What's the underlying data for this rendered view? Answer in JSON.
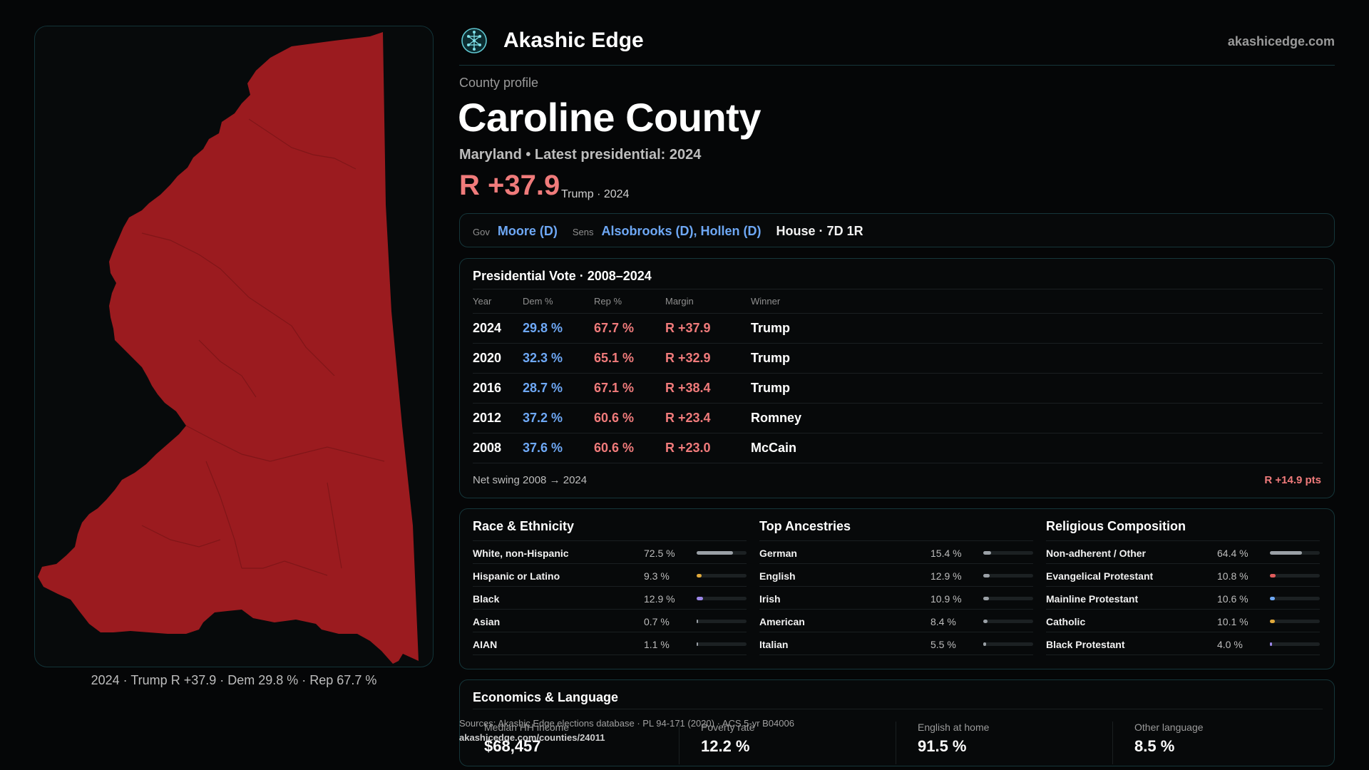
{
  "header": {
    "brand": "Akashic Edge",
    "site": "akashicedge.com",
    "logo_icon": "tree-of-life-icon"
  },
  "profile": {
    "eyebrow": "County profile",
    "title": "Caroline County",
    "subtitle": "Maryland • Latest presidential: 2024",
    "margin": "R +37.9",
    "margin_sub": "Trump · 2024"
  },
  "officials": {
    "gov_label": "Gov",
    "gov": "Moore (D)",
    "sens_label": "Sens",
    "sens": "Alsobrooks (D), Hollen (D)",
    "house": "House · 7D 1R"
  },
  "presidential": {
    "title": "Presidential Vote · 2008–2024",
    "columns": [
      "Year",
      "Dem %",
      "Rep %",
      "Margin",
      "Winner"
    ],
    "rows": [
      {
        "year": "2024",
        "dem": "29.8 %",
        "rep": "67.7 %",
        "margin": "R +37.9",
        "winner": "Trump"
      },
      {
        "year": "2020",
        "dem": "32.3 %",
        "rep": "65.1 %",
        "margin": "R +32.9",
        "winner": "Trump"
      },
      {
        "year": "2016",
        "dem": "28.7 %",
        "rep": "67.1 %",
        "margin": "R +38.4",
        "winner": "Trump"
      },
      {
        "year": "2012",
        "dem": "37.2 %",
        "rep": "60.6 %",
        "margin": "R +23.4",
        "winner": "Romney"
      },
      {
        "year": "2008",
        "dem": "37.6 %",
        "rep": "60.6 %",
        "margin": "R +23.0",
        "winner": "McCain"
      }
    ],
    "swing_label": "Net swing 2008 → 2024",
    "swing_value": "R +14.9 pts"
  },
  "race": {
    "title": "Race & Ethnicity",
    "items": [
      {
        "label": "White, non-Hispanic",
        "pct": "72.5 %",
        "value": 72.5,
        "color": "#9aa0a6"
      },
      {
        "label": "Hispanic or Latino",
        "pct": "9.3 %",
        "value": 9.3,
        "color": "#e0a93b"
      },
      {
        "label": "Black",
        "pct": "12.9 %",
        "value": 12.9,
        "color": "#9b86e8"
      },
      {
        "label": "Asian",
        "pct": "0.7 %",
        "value": 0.7,
        "color": "#9aa0a6"
      },
      {
        "label": "AIAN",
        "pct": "1.1 %",
        "value": 1.1,
        "color": "#9aa0a6"
      }
    ]
  },
  "ancestry": {
    "title": "Top Ancestries",
    "items": [
      {
        "label": "German",
        "pct": "15.4 %",
        "value": 15.4,
        "color": "#9aa0a6"
      },
      {
        "label": "English",
        "pct": "12.9 %",
        "value": 12.9,
        "color": "#9aa0a6"
      },
      {
        "label": "Irish",
        "pct": "10.9 %",
        "value": 10.9,
        "color": "#9aa0a6"
      },
      {
        "label": "American",
        "pct": "8.4 %",
        "value": 8.4,
        "color": "#9aa0a6"
      },
      {
        "label": "Italian",
        "pct": "5.5 %",
        "value": 5.5,
        "color": "#9aa0a6"
      }
    ]
  },
  "religion": {
    "title": "Religious Composition",
    "items": [
      {
        "label": "Non-adherent / Other",
        "pct": "64.4 %",
        "value": 64.4,
        "color": "#9aa0a6"
      },
      {
        "label": "Evangelical Protestant",
        "pct": "10.8 %",
        "value": 10.8,
        "color": "#e05c5c"
      },
      {
        "label": "Mainline Protestant",
        "pct": "10.6 %",
        "value": 10.6,
        "color": "#6ea8f5"
      },
      {
        "label": "Catholic",
        "pct": "10.1 %",
        "value": 10.1,
        "color": "#e0a93b"
      },
      {
        "label": "Black Protestant",
        "pct": "4.0 %",
        "value": 4.0,
        "color": "#9b86e8"
      }
    ]
  },
  "economics": {
    "title": "Economics & Language",
    "items": [
      {
        "label": "Median HH income",
        "value": "$68,457"
      },
      {
        "label": "Poverty rate",
        "value": "12.2 %"
      },
      {
        "label": "English at home",
        "value": "91.5 %"
      },
      {
        "label": "Other language",
        "value": "8.5 %"
      }
    ]
  },
  "sources": {
    "text": "Sources: Akashic Edge elections database · PL 94-171 (2020) · ACS 5-yr B04006",
    "url": "akashicedge.com/counties/24011"
  },
  "map": {
    "caption": "2024 · Trump R +37.9 · Dem 29.8 % · Rep 67.7 %",
    "fill_color": "#9b1b1f"
  }
}
